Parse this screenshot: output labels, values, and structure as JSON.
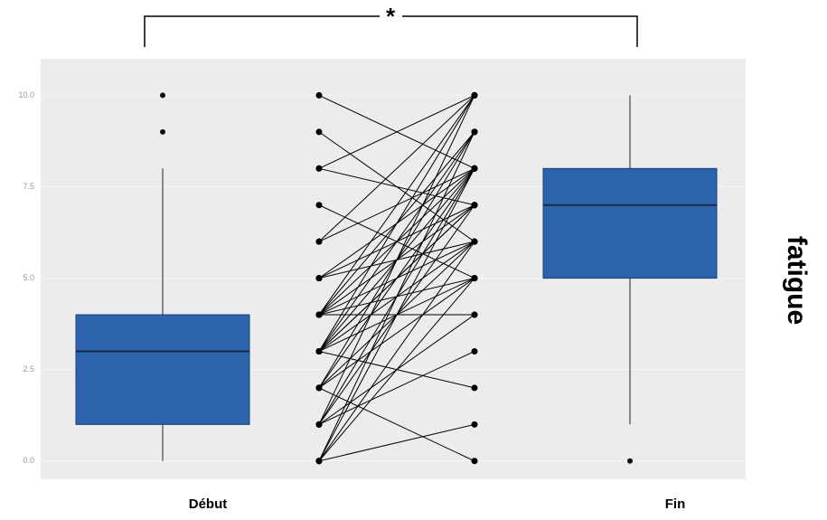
{
  "chart_data": {
    "type": "box",
    "y_label": "fatigue",
    "annotation": "*",
    "categories": [
      "Début",
      "Fin"
    ],
    "color": "#2b64ad",
    "ylim": [
      -0.5,
      11
    ],
    "yticks": [
      {
        "value": 0,
        "label": "0.0"
      },
      2.5,
      {
        "value": 5,
        "label": "5.0"
      },
      7.5,
      {
        "value": 10,
        "label": "10.0"
      }
    ],
    "grid": true,
    "boxes": [
      {
        "whislo": 0,
        "q1": 1,
        "med": 3,
        "q3": 4,
        "whishi": 8,
        "fliers": [
          9,
          10
        ]
      },
      {
        "whislo": 1,
        "q1": 5,
        "med": 7,
        "q3": 8,
        "whishi": 10,
        "fliers": [
          0
        ]
      }
    ],
    "pairs": {
      "start": [
        0,
        0,
        0,
        0,
        0,
        1,
        1,
        1,
        1,
        1,
        2,
        2,
        2,
        2,
        2,
        3,
        3,
        3,
        3,
        3,
        3,
        3,
        3,
        4,
        4,
        4,
        4,
        4,
        4,
        4,
        5,
        5,
        5,
        6,
        6,
        7,
        8,
        8,
        9,
        10
      ],
      "end": [
        5,
        8,
        1,
        6,
        9,
        4,
        7,
        10,
        3,
        8,
        6,
        0,
        8,
        5,
        9,
        7,
        10,
        2,
        6,
        8,
        5,
        7,
        9,
        4,
        10,
        6,
        8,
        7,
        5,
        9,
        8,
        7,
        6,
        10,
        8,
        5,
        7,
        10,
        6,
        8
      ]
    }
  }
}
